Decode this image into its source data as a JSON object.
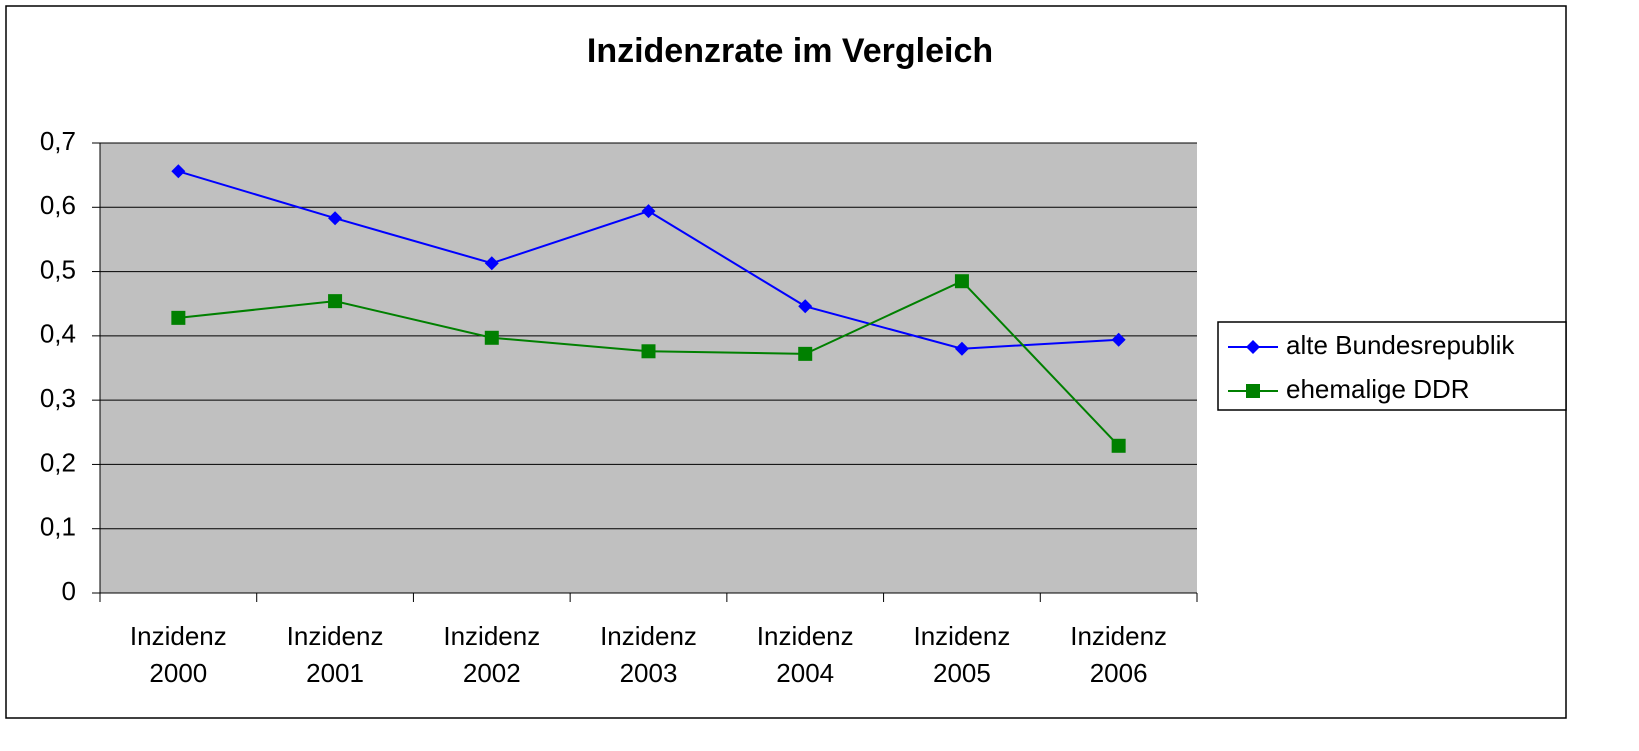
{
  "chart_data": {
    "type": "line",
    "title": "Inzidenzrate im Vergleich",
    "categories": [
      "Inzidenz 2000",
      "Inzidenz 2001",
      "Inzidenz 2002",
      "Inzidenz 2003",
      "Inzidenz 2004",
      "Inzidenz 2005",
      "Inzidenz 2006"
    ],
    "series": [
      {
        "name": "alte Bundesrepublik",
        "color": "#0000ff",
        "marker": "diamond",
        "values": [
          0.656,
          0.583,
          0.513,
          0.594,
          0.446,
          0.38,
          0.394
        ]
      },
      {
        "name": "ehemalige DDR",
        "color": "#008000",
        "marker": "square",
        "values": [
          0.428,
          0.454,
          0.397,
          0.376,
          0.372,
          0.485,
          0.229
        ]
      }
    ],
    "ylim": [
      0,
      0.7
    ],
    "yticks": [
      0,
      {
        "value": 0.1,
        "label": "0,1"
      },
      {
        "value": 0.2,
        "label": "0,2"
      },
      {
        "value": 0.3,
        "label": "0,3"
      },
      {
        "value": 0.4,
        "label": "0,4"
      },
      {
        "value": 0.5,
        "label": "0,5"
      },
      {
        "value": 0.6,
        "label": "0,6"
      },
      {
        "value": 0.7,
        "label": "0,7"
      }
    ],
    "grid": true,
    "legend": "right"
  }
}
